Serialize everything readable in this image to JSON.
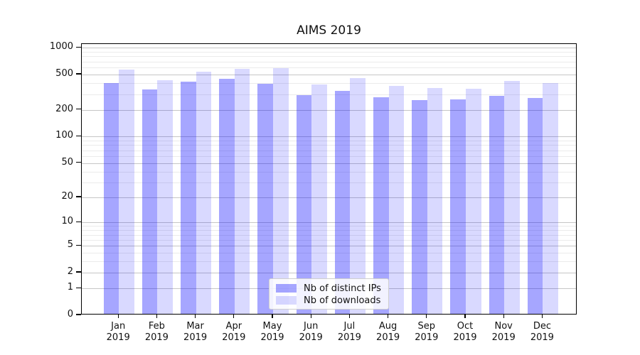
{
  "chart_data": {
    "type": "bar",
    "title": "AIMS 2019",
    "categories": [
      "Jan",
      "Feb",
      "Mar",
      "Apr",
      "May",
      "Jun",
      "Jul",
      "Aug",
      "Sep",
      "Oct",
      "Nov",
      "Dec"
    ],
    "category_year_line": "2019",
    "series": [
      {
        "name": "Nb of distinct IPs",
        "color": "rgba(0,0,255,0.35)",
        "values": [
          386,
          330,
          402,
          429,
          379,
          285,
          313,
          268,
          249,
          251,
          277,
          261
        ]
      },
      {
        "name": "Nb of downloads",
        "color": "rgba(0,0,255,0.15)",
        "values": [
          553,
          417,
          521,
          554,
          564,
          373,
          441,
          359,
          340,
          336,
          409,
          383
        ]
      }
    ],
    "yscale": "log1p",
    "ylim": [
      0,
      1100
    ],
    "yticks": [
      0,
      1,
      2,
      5,
      10,
      20,
      50,
      100,
      200,
      500,
      1000
    ],
    "minor_gridlines": [
      3,
      4,
      6,
      7,
      8,
      9,
      30,
      40,
      60,
      70,
      80,
      90,
      300,
      400,
      600,
      700,
      800,
      900
    ],
    "grid": true,
    "legend_position": "lower center",
    "colors": {
      "bar_dark": "rgba(0,0,255,0.35)",
      "bar_light": "rgba(0,0,255,0.15)",
      "grid_major": "#c6c6c6",
      "grid_minor": "#ebebeb",
      "spine": "#000000",
      "text": "#111111"
    }
  }
}
